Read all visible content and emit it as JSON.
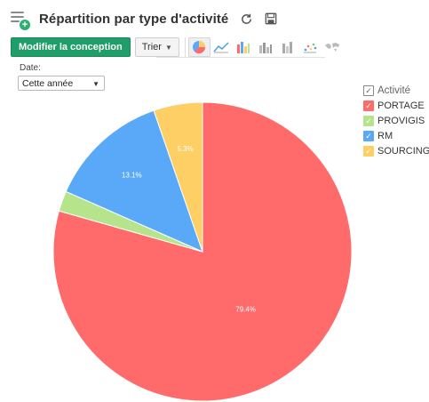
{
  "header": {
    "title": "Répartition par type d'activité",
    "add_icon": "add-report-icon",
    "refresh_icon": "refresh-icon",
    "save_icon": "save-icon"
  },
  "toolbar": {
    "modify_label": "Modifier la conception",
    "sort_label": "Trier",
    "chart_types": [
      "pie-chart-icon",
      "line-chart-icon",
      "bar-chart-icon",
      "column-chart-icon",
      "stacked-chart-icon",
      "scatter-chart-icon",
      "map-chart-icon"
    ],
    "active_chart_type": "pie-chart-icon"
  },
  "filter": {
    "label": "Date:",
    "value": "Cette année"
  },
  "chart_data": {
    "type": "pie",
    "legend_title": "Activité",
    "legend_position": "right",
    "slices": [
      {
        "name": "PORTAGE",
        "value": 79.4,
        "label": "79.4%",
        "color": "#ff6b6b"
      },
      {
        "name": "PROVIGIS",
        "value": 2.2,
        "label": "",
        "color": "#b5e48c"
      },
      {
        "name": "RM",
        "value": 13.1,
        "label": "13.1%",
        "color": "#5aa9f8"
      },
      {
        "name": "SOURCING",
        "value": 5.3,
        "label": "5.3%",
        "color": "#fdcf64"
      }
    ]
  }
}
